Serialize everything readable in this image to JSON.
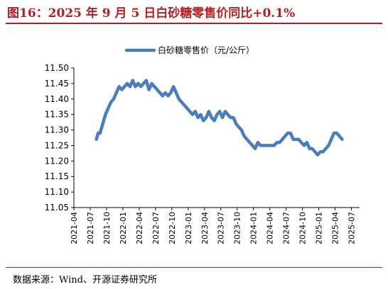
{
  "figure": {
    "title": "图16：2025 年 9 月 5 日白砂糖零售价同比+0.1%",
    "source": "数据来源：Wind、开源证券研究所",
    "line_color": "#4a7ebb",
    "accent_color": "#b31f24"
  },
  "chart_data": {
    "type": "line",
    "legend": [
      "白砂糖零售价（元/公斤）"
    ],
    "legend_position": "top-center",
    "ylim": [
      11.05,
      11.5
    ],
    "yticks": [
      "11.50",
      "11.45",
      "11.40",
      "11.35",
      "11.30",
      "11.25",
      "11.20",
      "11.15",
      "11.10",
      "11.05"
    ],
    "xticks": [
      "2021-04",
      "2021-07",
      "2021-10",
      "2022-01",
      "2022-04",
      "2022-07",
      "2022-10",
      "2023-01",
      "2023-04",
      "2023-07",
      "2023-10",
      "2024-01",
      "2024-04",
      "2024-07",
      "2024-10",
      "2025-01",
      "2025-04",
      "2025-07"
    ],
    "grid": false,
    "series": [
      {
        "name": "白砂糖零售价（元/公斤）",
        "points": [
          [
            "2021-08-05",
            11.27
          ],
          [
            "2021-08-15",
            11.29
          ],
          [
            "2021-08-25",
            11.29
          ],
          [
            "2021-09-05",
            11.31
          ],
          [
            "2021-09-15",
            11.33
          ],
          [
            "2021-09-25",
            11.35
          ],
          [
            "2021-10-10",
            11.37
          ],
          [
            "2021-10-25",
            11.39
          ],
          [
            "2021-11-10",
            11.4
          ],
          [
            "2021-11-25",
            11.42
          ],
          [
            "2021-12-10",
            11.44
          ],
          [
            "2021-12-25",
            11.43
          ],
          [
            "2022-01-10",
            11.44
          ],
          [
            "2022-01-25",
            11.45
          ],
          [
            "2022-02-10",
            11.44
          ],
          [
            "2022-02-25",
            11.46
          ],
          [
            "2022-03-10",
            11.44
          ],
          [
            "2022-03-25",
            11.45
          ],
          [
            "2022-04-10",
            11.44
          ],
          [
            "2022-04-25",
            11.45
          ],
          [
            "2022-05-10",
            11.46
          ],
          [
            "2022-05-25",
            11.43
          ],
          [
            "2022-06-10",
            11.45
          ],
          [
            "2022-06-25",
            11.44
          ],
          [
            "2022-07-10",
            11.43
          ],
          [
            "2022-07-25",
            11.42
          ],
          [
            "2022-08-10",
            11.41
          ],
          [
            "2022-08-25",
            11.42
          ],
          [
            "2022-09-10",
            11.41
          ],
          [
            "2022-09-25",
            11.42
          ],
          [
            "2022-10-10",
            11.44
          ],
          [
            "2022-10-25",
            11.42
          ],
          [
            "2022-11-10",
            11.4
          ],
          [
            "2022-11-25",
            11.39
          ],
          [
            "2022-12-10",
            11.38
          ],
          [
            "2022-12-25",
            11.37
          ],
          [
            "2023-01-10",
            11.36
          ],
          [
            "2023-01-25",
            11.35
          ],
          [
            "2023-02-10",
            11.36
          ],
          [
            "2023-02-25",
            11.34
          ],
          [
            "2023-03-10",
            11.35
          ],
          [
            "2023-03-25",
            11.33
          ],
          [
            "2023-04-10",
            11.34
          ],
          [
            "2023-04-25",
            11.36
          ],
          [
            "2023-05-10",
            11.34
          ],
          [
            "2023-05-25",
            11.33
          ],
          [
            "2023-06-10",
            11.35
          ],
          [
            "2023-06-25",
            11.36
          ],
          [
            "2023-07-10",
            11.34
          ],
          [
            "2023-07-25",
            11.36
          ],
          [
            "2023-08-10",
            11.35
          ],
          [
            "2023-08-25",
            11.34
          ],
          [
            "2023-09-10",
            11.34
          ],
          [
            "2023-09-25",
            11.32
          ],
          [
            "2023-10-10",
            11.31
          ],
          [
            "2023-10-25",
            11.3
          ],
          [
            "2023-11-10",
            11.28
          ],
          [
            "2023-11-25",
            11.27
          ],
          [
            "2023-12-10",
            11.26
          ],
          [
            "2023-12-25",
            11.25
          ],
          [
            "2024-01-10",
            11.24
          ],
          [
            "2024-01-25",
            11.26
          ],
          [
            "2024-02-10",
            11.25
          ],
          [
            "2024-02-25",
            11.25
          ],
          [
            "2024-03-10",
            11.25
          ],
          [
            "2024-03-25",
            11.25
          ],
          [
            "2024-04-10",
            11.25
          ],
          [
            "2024-04-25",
            11.25
          ],
          [
            "2024-05-10",
            11.26
          ],
          [
            "2024-05-25",
            11.26
          ],
          [
            "2024-06-10",
            11.27
          ],
          [
            "2024-06-25",
            11.28
          ],
          [
            "2024-07-10",
            11.29
          ],
          [
            "2024-07-25",
            11.29
          ],
          [
            "2024-08-10",
            11.27
          ],
          [
            "2024-08-25",
            11.27
          ],
          [
            "2024-09-10",
            11.27
          ],
          [
            "2024-09-25",
            11.26
          ],
          [
            "2024-10-10",
            11.25
          ],
          [
            "2024-10-25",
            11.26
          ],
          [
            "2024-11-10",
            11.24
          ],
          [
            "2024-11-25",
            11.24
          ],
          [
            "2024-12-10",
            11.23
          ],
          [
            "2024-12-25",
            11.22
          ],
          [
            "2025-01-10",
            11.23
          ],
          [
            "2025-01-25",
            11.23
          ],
          [
            "2025-02-10",
            11.24
          ],
          [
            "2025-02-25",
            11.25
          ],
          [
            "2025-03-10",
            11.27
          ],
          [
            "2025-03-25",
            11.29
          ],
          [
            "2025-04-10",
            11.29
          ],
          [
            "2025-04-25",
            11.28
          ],
          [
            "2025-05-10",
            11.27
          ]
        ]
      }
    ]
  }
}
